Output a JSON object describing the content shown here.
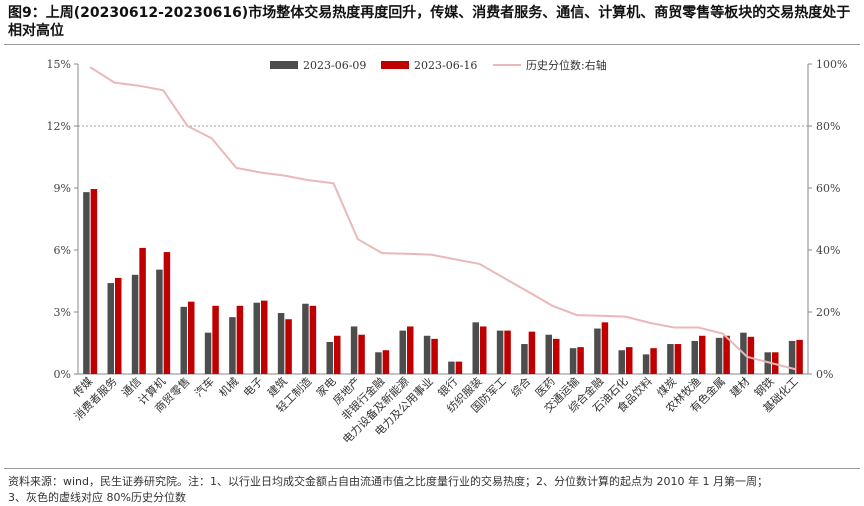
{
  "title": "图9：上周(20230612-20230616)市场整体交易热度再度回升，传媒、消费者服务、通信、计算机、商贸零售等板块的交易热度处于相对高位",
  "note_lines": [
    "资料来源：wind，民生证券研究院。注：1、以行业日均成交金额占自由流通市值之比度量行业的交易热度；2、分位数计算的起点为 2010 年 1 月第一周；",
    "3、灰色的虚线对应 80%历史分位数"
  ],
  "colors": {
    "series_a": "#4d4d4d",
    "series_b": "#c00000",
    "percentile_line": "#eab8b8",
    "axis": "#888888",
    "ref_line": "#a0a0a0"
  },
  "chart_data": {
    "type": "bar",
    "categories": [
      "传媒",
      "消费者服务",
      "通信",
      "计算机",
      "商贸零售",
      "汽车",
      "机械",
      "电子",
      "建筑",
      "轻工制造",
      "家电",
      "房地产",
      "非银行金融",
      "电力设备及新能源",
      "电力及公用事业",
      "银行",
      "纺织服装",
      "国防军工",
      "综合",
      "医药",
      "交通运输",
      "综合金融",
      "石油石化",
      "食品饮料",
      "煤炭",
      "农林牧渔",
      "有色金属",
      "建材",
      "钢铁",
      "基础化工"
    ],
    "series": [
      {
        "name": "2023-06-09",
        "axis": "left",
        "values": [
          8.8,
          4.4,
          4.8,
          5.05,
          3.25,
          2.0,
          2.75,
          3.45,
          2.95,
          3.4,
          1.55,
          2.3,
          1.05,
          2.1,
          1.85,
          0.6,
          2.5,
          2.1,
          1.45,
          1.9,
          1.25,
          2.2,
          1.15,
          0.95,
          1.45,
          1.6,
          1.75,
          2.0,
          1.05,
          1.6
        ]
      },
      {
        "name": "2023-06-16",
        "axis": "left",
        "values": [
          8.95,
          4.65,
          6.1,
          5.9,
          3.5,
          3.3,
          3.3,
          3.55,
          2.65,
          3.3,
          1.85,
          1.9,
          1.15,
          2.3,
          1.7,
          0.6,
          2.3,
          2.1,
          2.05,
          1.7,
          1.3,
          2.5,
          1.3,
          1.25,
          1.45,
          1.85,
          1.85,
          1.8,
          1.05,
          1.65
        ]
      },
      {
        "name": "历史分位数:右轴",
        "axis": "right",
        "type": "line",
        "values": [
          99,
          94,
          93,
          91.5,
          80,
          76,
          66.5,
          65,
          64,
          62.5,
          61.5,
          43.5,
          39,
          38.8,
          38.5,
          37,
          35.5,
          31,
          26.5,
          22,
          19,
          18.8,
          18.5,
          16.5,
          15,
          15,
          13,
          5.5,
          3.5,
          1.5
        ]
      }
    ],
    "left_axis": {
      "ticks": [
        "0%",
        "3%",
        "6%",
        "9%",
        "12%",
        "15%"
      ],
      "ylim": [
        0,
        15
      ]
    },
    "right_axis": {
      "ticks": [
        "0%",
        "20%",
        "40%",
        "60%",
        "80%",
        "100%"
      ],
      "ylim": [
        0,
        100
      ]
    },
    "reference_line": {
      "axis": "right",
      "value": 80,
      "style": "dashed"
    },
    "legend_position": "top-center"
  }
}
